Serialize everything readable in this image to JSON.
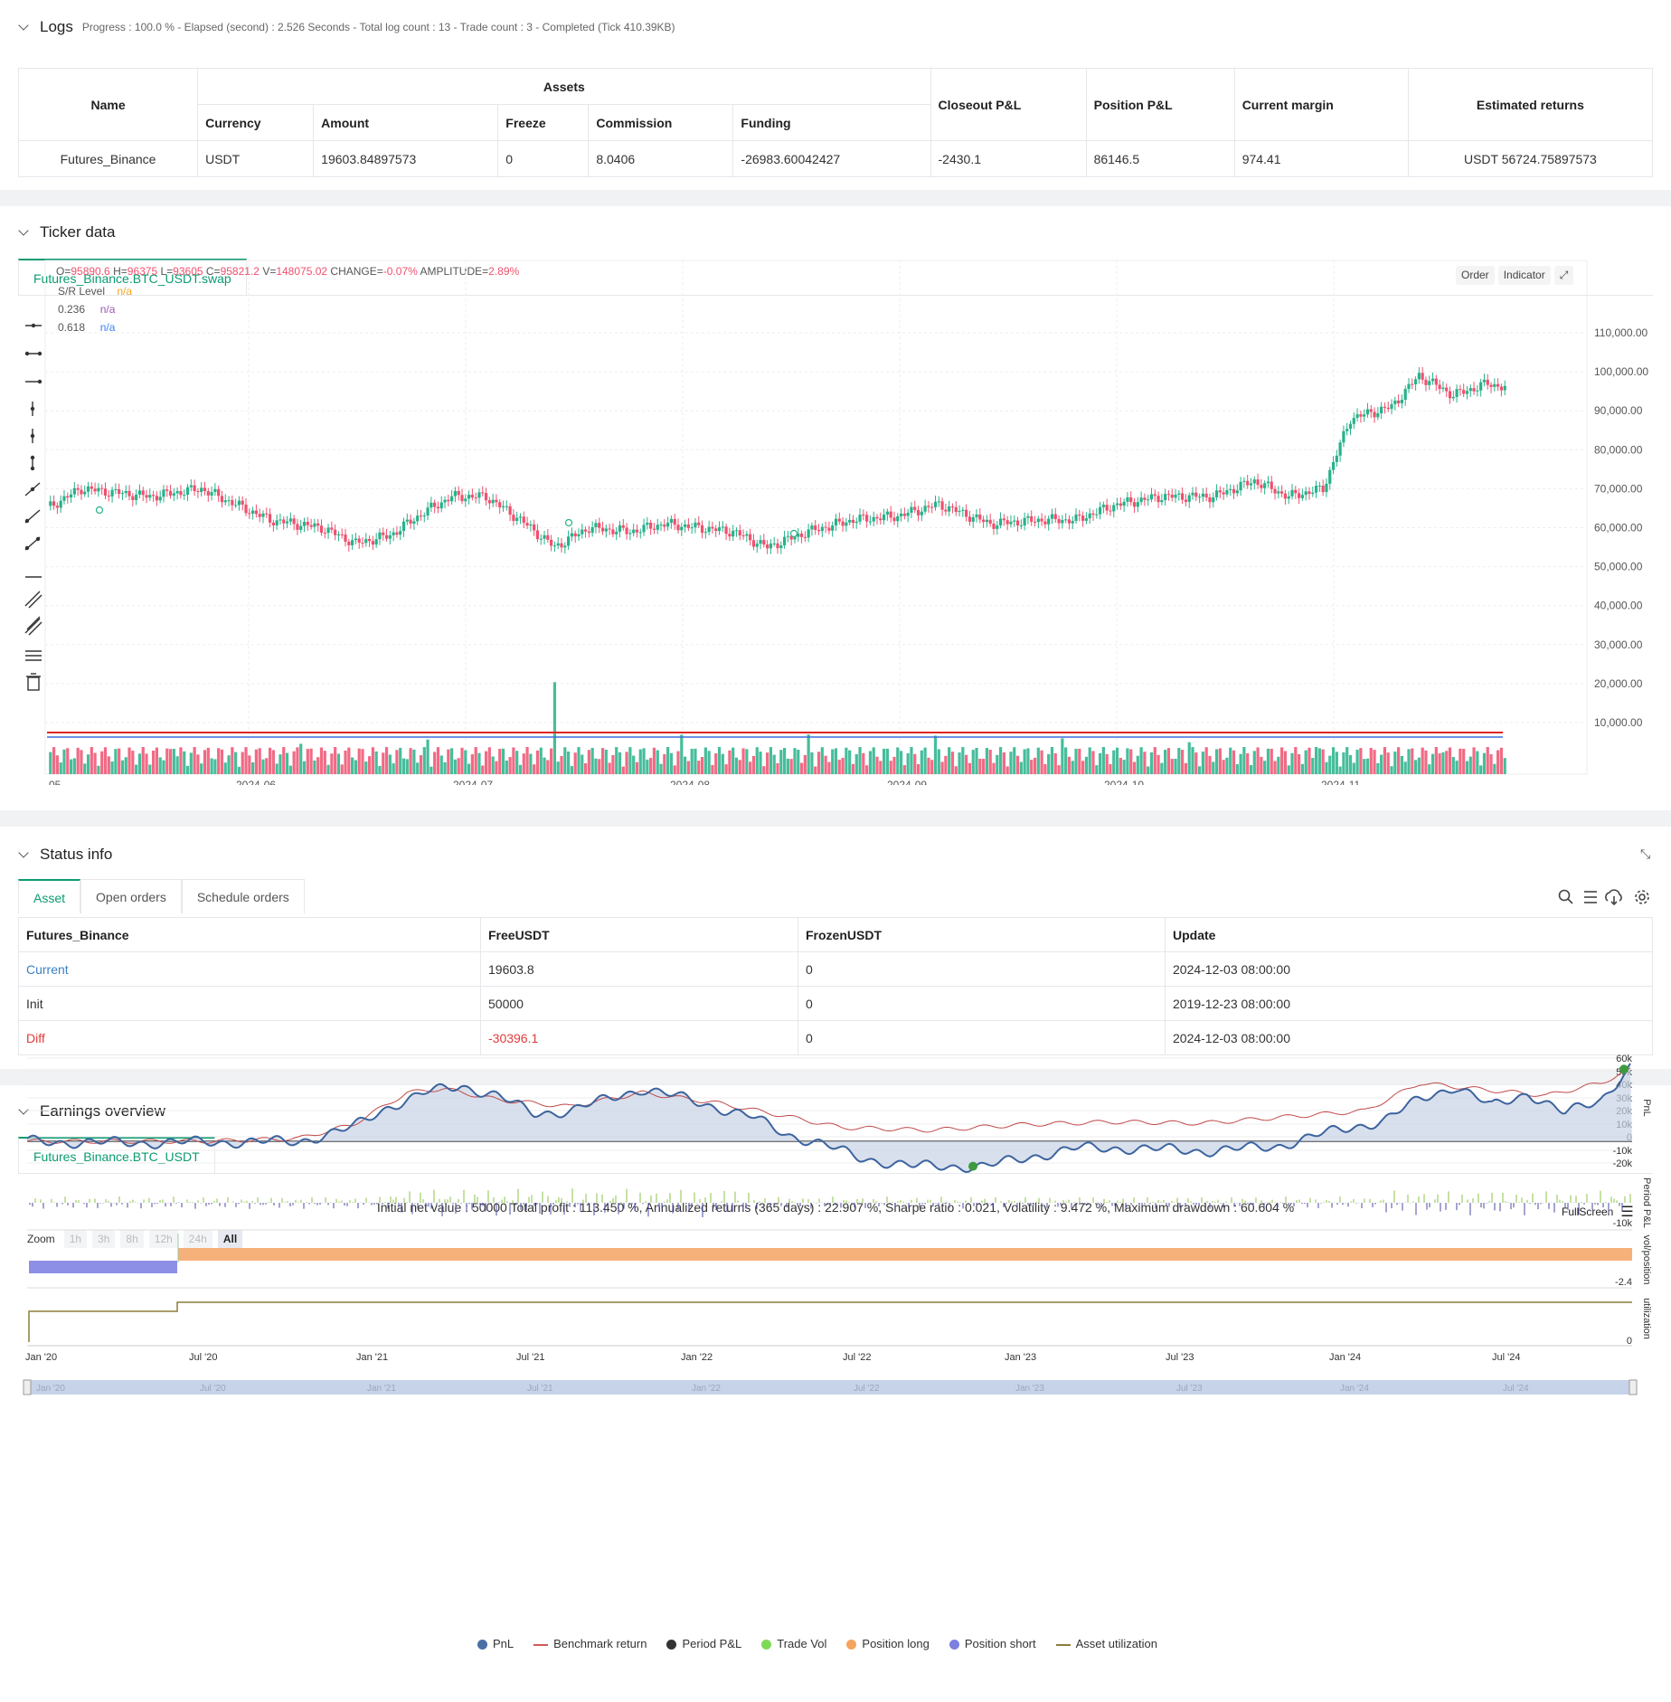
{
  "logs": {
    "title": "Logs",
    "summary": "Progress : 100.0 % - Elapsed (second) : 2.526  Seconds - Total log count : 13 - Trade count : 3 - Completed (Tick 410.39KB)",
    "table": {
      "headers": {
        "name": "Name",
        "assets": "Assets",
        "currency": "Currency",
        "amount": "Amount",
        "freeze": "Freeze",
        "commission": "Commission",
        "funding": "Funding",
        "closeout": "Closeout P&L",
        "position": "Position P&L",
        "margin": "Current margin",
        "returns": "Estimated returns"
      },
      "row": {
        "name": "Futures_Binance",
        "currency": "USDT",
        "amount": "19603.84897573",
        "freeze": "0",
        "commission": "8.0406",
        "funding": "-26983.60042427",
        "closeout": "-2430.1",
        "position": "86146.5",
        "margin": "974.41",
        "returns": "USDT 56724.75897573"
      }
    }
  },
  "ticker": {
    "title": "Ticker data",
    "tab": "Futures_Binance.BTC_USDT.swap",
    "ohlc": {
      "o_label": "O=",
      "o": "95890.6",
      "h_label": "H=",
      "h": "96375",
      "l_label": "L=",
      "l": "93605",
      "c_label": "C=",
      "c": "95821.2",
      "v_label": "V=",
      "v": "148075.02",
      "change_label": "CHANGE=",
      "change": "-0.07%",
      "amp_label": "AMPLITUDE=",
      "amp": "2.89%"
    },
    "indicators": [
      {
        "name": "S/R Level",
        "value": "n/a",
        "color": "#f5a623"
      },
      {
        "name": "0.236",
        "value": "n/a",
        "color": "#9b59b6"
      },
      {
        "name": "0.618",
        "value": "n/a",
        "color": "#3b82f6"
      }
    ],
    "buttons": {
      "order": "Order",
      "indicator": "Indicator"
    },
    "y_ticks": [
      "110,000.00",
      "100,000.00",
      "90,000.00",
      "80,000.00",
      "70,000.00",
      "60,000.00",
      "50,000.00",
      "40,000.00",
      "30,000.00",
      "20,000.00",
      "10,000.00"
    ],
    "x_ticks": [
      "-05",
      "2024-06",
      "2024-07",
      "2024-08",
      "2024-09",
      "2024-10",
      "2024-11"
    ],
    "colors": {
      "up": "#26b28a",
      "down": "#f0506e"
    }
  },
  "status": {
    "title": "Status info",
    "tabs": [
      "Asset",
      "Open orders",
      "Schedule orders"
    ],
    "headers": [
      "Futures_Binance",
      "FreeUSDT",
      "FrozenUSDT",
      "Update"
    ],
    "rows": [
      {
        "label": "Current",
        "free": "19603.8",
        "frozen": "0",
        "update": "2024-12-03 08:00:00"
      },
      {
        "label": "Init",
        "free": "50000",
        "frozen": "0",
        "update": "2019-12-23 08:00:00"
      },
      {
        "label": "Diff",
        "free": "-30396.1",
        "frozen": "0",
        "update": "2024-12-03 08:00:00"
      }
    ]
  },
  "earnings": {
    "title": "Earnings overview",
    "tab": "Futures_Binance.BTC_USDT",
    "summary": "Initial net value : 50000  Total profit : 113.450 %, Annualized returns (365 days) : 22.907 %, Sharpe ratio : 0.021, Volatility : 9.472 %, Maximum drawdown : 60.604 %",
    "fullscreen": "FullScreen",
    "zoom_label": "Zoom",
    "zoom_options": [
      "1h",
      "3h",
      "8h",
      "12h",
      "24h",
      "All"
    ],
    "pnl_ticks": [
      "60k",
      "50k",
      "40k",
      "30k",
      "20k",
      "10k",
      "0",
      "-10k",
      "-20k"
    ],
    "period_tick": "-10k",
    "pos_tick": "-2.4",
    "util_tick": "0",
    "axis_labels": {
      "pnl": "PnL",
      "period": "Period P&L",
      "vol": "vol/position",
      "util": "utilization"
    },
    "x_ticks": [
      "Jan '20",
      "Jul '20",
      "Jan '21",
      "Jul '21",
      "Jan '22",
      "Jul '22",
      "Jan '23",
      "Jul '23",
      "Jan '24",
      "Jul '24"
    ],
    "legend": [
      {
        "name": "PnL",
        "color": "#4a6fa5",
        "shape": "dot"
      },
      {
        "name": "Benchmark return",
        "color": "#d05a5a",
        "shape": "line"
      },
      {
        "name": "Period P&L",
        "color": "#333333",
        "shape": "dot"
      },
      {
        "name": "Trade Vol",
        "color": "#7ed957",
        "shape": "dot"
      },
      {
        "name": "Position long",
        "color": "#f4a460",
        "shape": "dot"
      },
      {
        "name": "Position short",
        "color": "#7b7fe0",
        "shape": "dot"
      },
      {
        "name": "Asset utilization",
        "color": "#8b7d3a",
        "shape": "line"
      }
    ]
  }
}
